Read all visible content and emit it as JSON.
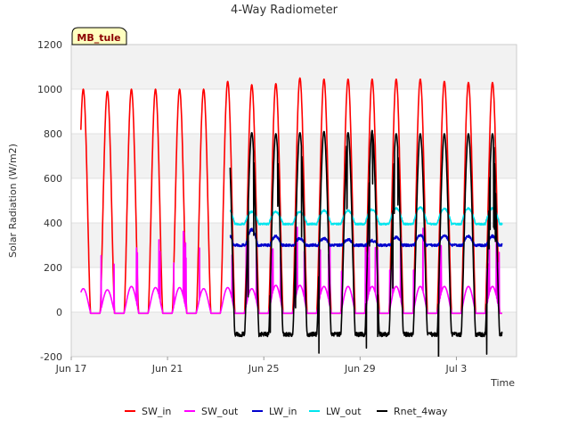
{
  "chart_data": {
    "type": "line",
    "title": "4-Way Radiometer",
    "xlabel": "Time",
    "ylabel": "Solar Radiation (W/m2)",
    "station_label": "MB_tule",
    "ylim": [
      -200,
      1200
    ],
    "xlim_days": [
      17,
      35.5
    ],
    "y_ticks": [
      "-200",
      "0",
      "200",
      "400",
      "600",
      "800",
      "1000",
      "1200"
    ],
    "x_ticks": [
      {
        "label": "Jun 17",
        "day": 17
      },
      {
        "label": "Jun 21",
        "day": 21
      },
      {
        "label": "Jun 25",
        "day": 25
      },
      {
        "label": "Jun 29",
        "day": 29
      },
      {
        "label": "Jul 3",
        "day": 33
      }
    ],
    "grid": true,
    "legend_position": "bottom",
    "series": [
      {
        "name": "SW_in",
        "color": "#ff0000",
        "start_day": 17.4,
        "end_day": 34.9,
        "daily_peaks": [
          1000,
          990,
          1000,
          1000,
          1000,
          1000,
          1035,
          1020,
          1025,
          1050,
          1045,
          1045,
          1045,
          1045,
          1045,
          1035,
          1030
        ]
      },
      {
        "name": "SW_out",
        "color": "#ff00ff",
        "start_day": 17.4,
        "end_day": 34.9,
        "daily_peaks": [
          105,
          100,
          115,
          110,
          110,
          105,
          110,
          105,
          120,
          120,
          115,
          115,
          115,
          115,
          115,
          115,
          115
        ]
      },
      {
        "name": "LW_in",
        "color": "#0000cd",
        "start_day": 23.6,
        "end_day": 34.9,
        "daily_peaks": [
          355,
          370,
          340,
          330,
          330,
          325,
          320,
          335,
          345,
          345,
          340,
          340
        ]
      },
      {
        "name": "LW_out",
        "color": "#00e5ee",
        "start_day": 23.6,
        "end_day": 34.9,
        "daily_peaks": [
          465,
          450,
          450,
          450,
          455,
          455,
          460,
          465,
          470,
          465,
          465,
          465
        ]
      },
      {
        "name": "Rnet_4way",
        "color": "#000000",
        "start_day": 23.6,
        "end_day": 34.9,
        "daily_peaks": [
          815,
          805,
          800,
          805,
          810,
          805,
          815,
          800,
          800,
          800,
          800,
          800
        ],
        "night_min": -100
      }
    ]
  }
}
